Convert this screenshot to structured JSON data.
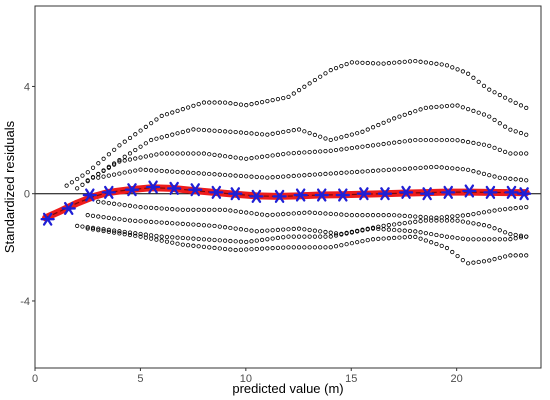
{
  "colors": {
    "points": "#000000",
    "smooth": "#ee1c1c",
    "star": "#1f1fd6",
    "zero_line": "#000000",
    "panel_border": "#333333",
    "tick_text": "#4d4d4d"
  },
  "chart_data": {
    "type": "scatter",
    "title": "",
    "xlabel": "predicted value (m)",
    "ylabel": "Standardized residuals",
    "xlim": [
      0,
      24
    ],
    "ylim": [
      -6.5,
      7
    ],
    "x_ticks": [
      0,
      5,
      10,
      15,
      20
    ],
    "y_ticks": [
      -4,
      0,
      4
    ],
    "grid": false,
    "zero_line": 0,
    "residual_curves": [
      {
        "x": [
          1.5,
          2.5,
          4.0,
          6.0,
          8.0,
          9.0,
          10.0,
          12.0,
          14.0,
          15.0,
          16.5,
          18.0,
          19.5,
          20.5,
          21.5,
          22.5,
          23.3
        ],
        "y": [
          0.3,
          0.8,
          1.8,
          2.9,
          3.4,
          3.4,
          3.3,
          3.6,
          4.6,
          4.9,
          4.85,
          4.95,
          4.8,
          4.5,
          3.9,
          3.5,
          3.2
        ]
      },
      {
        "x": [
          2.0,
          3.5,
          5.5,
          7.5,
          9.5,
          11.0,
          12.5,
          14.0,
          15.5,
          17.0,
          18.5,
          20.0,
          21.5,
          22.5,
          23.3
        ],
        "y": [
          0.2,
          1.0,
          2.0,
          2.4,
          2.3,
          2.2,
          2.4,
          2.0,
          2.3,
          2.8,
          3.2,
          3.3,
          2.9,
          2.4,
          2.2
        ]
      },
      {
        "x": [
          2.5,
          4.0,
          6.0,
          8.0,
          10.0,
          12.0,
          14.0,
          16.0,
          18.0,
          20.0,
          21.5,
          22.5,
          23.3
        ],
        "y": [
          0.5,
          1.2,
          1.5,
          1.5,
          1.3,
          1.5,
          1.6,
          1.8,
          2.0,
          2.0,
          1.8,
          1.5,
          1.5
        ]
      },
      {
        "x": [
          3.0,
          5.0,
          7.0,
          9.0,
          11.0,
          13.0,
          15.0,
          17.0,
          19.0,
          20.5,
          22.0,
          23.3
        ],
        "y": [
          0.6,
          0.9,
          0.8,
          0.7,
          0.6,
          0.7,
          0.8,
          0.9,
          1.0,
          0.9,
          0.6,
          0.5
        ]
      },
      {
        "x": [
          3.0,
          5.0,
          7.0,
          9.0,
          11.0,
          13.0,
          15.0,
          17.0,
          19.0,
          20.5,
          22.0,
          23.3
        ],
        "y": [
          -0.3,
          -0.5,
          -0.6,
          -0.6,
          -0.8,
          -0.7,
          -0.8,
          -0.8,
          -0.9,
          -0.8,
          -0.6,
          -0.5
        ]
      },
      {
        "x": [
          2.5,
          4.5,
          6.5,
          8.5,
          10.5,
          12.5,
          14.5,
          16.5,
          18.5,
          20.0,
          21.5,
          22.5,
          23.3
        ],
        "y": [
          -0.8,
          -1.0,
          -1.1,
          -1.2,
          -1.4,
          -1.3,
          -1.5,
          -1.2,
          -1.0,
          -1.0,
          -1.2,
          -1.5,
          -1.6
        ]
      },
      {
        "x": [
          2.0,
          4.0,
          6.0,
          8.0,
          10.0,
          12.0,
          14.0,
          16.0,
          18.0,
          19.5,
          20.5,
          21.5,
          22.5,
          23.3
        ],
        "y": [
          -1.2,
          -1.4,
          -1.6,
          -1.7,
          -1.8,
          -1.6,
          -1.6,
          -1.3,
          -1.4,
          -1.6,
          -1.7,
          -1.7,
          -1.7,
          -1.6
        ]
      },
      {
        "x": [
          2.5,
          5.0,
          7.0,
          9.5,
          12.0,
          14.0,
          16.0,
          18.0,
          19.5,
          20.5,
          21.5,
          22.5,
          23.3
        ],
        "y": [
          -1.3,
          -1.6,
          -1.9,
          -2.1,
          -2.0,
          -2.0,
          -1.7,
          -1.6,
          -2.0,
          -2.6,
          -2.5,
          -2.3,
          -2.3
        ]
      }
    ],
    "smooth_line": {
      "x": [
        0.5,
        1.2,
        2.0,
        2.8,
        3.5,
        4.5,
        5.5,
        6.5,
        7.5,
        8.5,
        9.5,
        10.5,
        11.5,
        12.5,
        13.5,
        14.5,
        15.5,
        16.5,
        17.5,
        18.5,
        19.5,
        20.5,
        21.5,
        22.5,
        23.3
      ],
      "y": [
        -0.9,
        -0.65,
        -0.35,
        -0.1,
        0.05,
        0.15,
        0.22,
        0.2,
        0.12,
        0.05,
        -0.02,
        -0.08,
        -0.1,
        -0.08,
        -0.05,
        -0.04,
        -0.02,
        0.0,
        0.02,
        0.04,
        0.06,
        0.06,
        0.05,
        0.04,
        0.04
      ]
    },
    "star_points": {
      "x": [
        0.6,
        1.6,
        2.6,
        3.5,
        4.6,
        5.6,
        6.6,
        7.6,
        8.6,
        9.5,
        10.5,
        11.6,
        12.6,
        13.6,
        14.6,
        15.6,
        16.6,
        17.6,
        18.6,
        19.6,
        20.6,
        21.6,
        22.6,
        23.2
      ],
      "y": [
        -0.95,
        -0.55,
        -0.05,
        0.05,
        0.15,
        0.25,
        0.2,
        0.15,
        0.05,
        0.0,
        -0.1,
        -0.1,
        -0.05,
        -0.05,
        -0.05,
        0.0,
        0.0,
        0.05,
        0.0,
        0.05,
        0.1,
        0.05,
        0.05,
        0.0
      ]
    }
  }
}
